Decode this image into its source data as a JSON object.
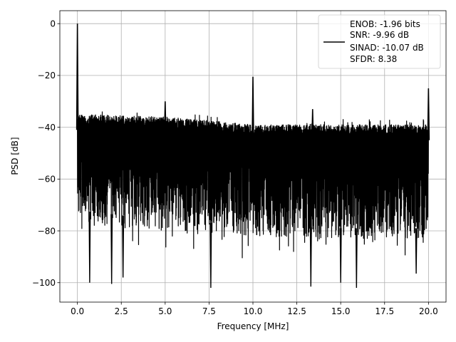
{
  "chart_data": {
    "type": "line",
    "title": "",
    "xlabel": "Frequency [MHz]",
    "ylabel": "PSD [dB]",
    "xlim": [
      -1.0,
      21.0
    ],
    "ylim": [
      -107.5,
      5.0
    ],
    "xticks": [
      0.0,
      2.5,
      5.0,
      7.5,
      10.0,
      12.5,
      15.0,
      17.5,
      20.0
    ],
    "xtick_labels": [
      "0.0",
      "2.5",
      "5.0",
      "7.5",
      "10.0",
      "12.5",
      "15.0",
      "17.5",
      "20.0"
    ],
    "yticks": [
      0,
      -20,
      -40,
      -60,
      -80,
      -100
    ],
    "ytick_labels": [
      "0",
      "−20",
      "−40",
      "−60",
      "−80",
      "−100"
    ],
    "grid": true,
    "legend_position": "top-right",
    "legend_entries": [
      "ENOB: -1.96 bits",
      "SNR: -9.96 dB",
      "SINAD: -10.07 dB",
      "SFDR: 8.38"
    ],
    "series": [
      {
        "color": "#000000",
        "noise_floor_top_db": [
          [
            0.0,
            -35
          ],
          [
            5.0,
            -36
          ],
          [
            10.0,
            -39
          ],
          [
            15.0,
            -39
          ],
          [
            20.0,
            -39
          ]
        ],
        "noise_floor_bottom_db": [
          [
            0.0,
            -76
          ],
          [
            5.0,
            -80
          ],
          [
            10.0,
            -82
          ],
          [
            15.0,
            -83
          ],
          [
            20.0,
            -83
          ]
        ],
        "spurs": [
          {
            "x": 0.0,
            "y": 0.0
          },
          {
            "x": 5.0,
            "y": -30.0
          },
          {
            "x": 10.0,
            "y": -20.5
          },
          {
            "x": 13.4,
            "y": -33.0
          },
          {
            "x": 20.0,
            "y": -25.0
          }
        ],
        "deep_minima": [
          {
            "x": 0.7,
            "y": -100.0
          },
          {
            "x": 1.95,
            "y": -100.5
          },
          {
            "x": 2.6,
            "y": -98.0
          },
          {
            "x": 7.6,
            "y": -102.0
          },
          {
            "x": 13.3,
            "y": -101.5
          },
          {
            "x": 15.9,
            "y": -102.0
          },
          {
            "x": 15.0,
            "y": -100.0
          },
          {
            "x": 19.3,
            "y": -96.5
          }
        ]
      }
    ]
  }
}
